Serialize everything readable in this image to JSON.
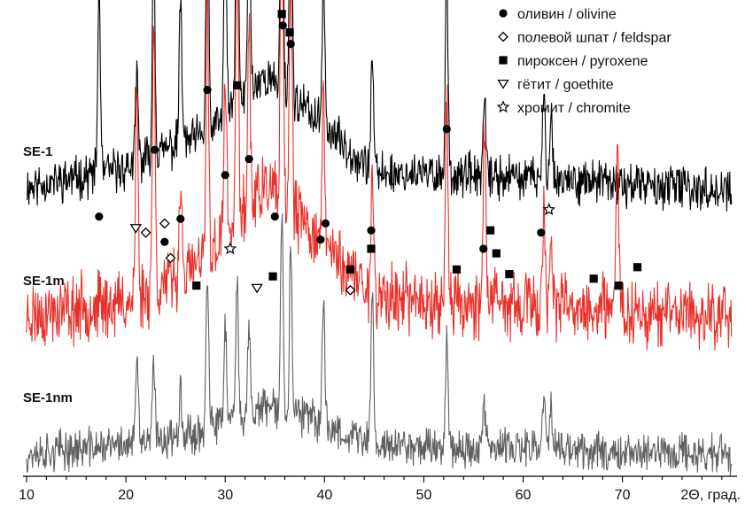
{
  "chart_data": {
    "type": "line",
    "x_label": "2Θ, град.",
    "xlim": [
      10,
      81
    ],
    "x_ticks": [
      10,
      20,
      30,
      40,
      50,
      60,
      70
    ],
    "x_minor_step": 2,
    "y_axis_shown": false,
    "series": [
      {
        "name": "SE-1",
        "color": "#000000",
        "offset": 0.6,
        "noise": 0.07,
        "seed": 11,
        "baseline": [
          [
            10,
            0.01
          ],
          [
            20,
            0.05
          ],
          [
            25,
            0.1
          ],
          [
            28,
            0.12
          ],
          [
            34,
            0.25
          ],
          [
            38,
            0.18
          ],
          [
            45,
            0.04
          ],
          [
            60,
            0.03
          ],
          [
            81,
            0.0
          ]
        ]
      },
      {
        "name": "SE-1m",
        "color": "#e8312a",
        "offset": 0.33,
        "noise": 0.11,
        "seed": 23,
        "baseline": [
          [
            10,
            0.0
          ],
          [
            20,
            0.03
          ],
          [
            26,
            0.09
          ],
          [
            28,
            0.12
          ],
          [
            34,
            0.28
          ],
          [
            38,
            0.2
          ],
          [
            45,
            0.04
          ],
          [
            60,
            0.02
          ],
          [
            81,
            0.0
          ]
        ]
      },
      {
        "name": "SE-1nm",
        "color": "#606060",
        "offset": 0.03,
        "noise": 0.065,
        "seed": 37,
        "baseline": [
          [
            10,
            0.0
          ],
          [
            20,
            0.02
          ],
          [
            26,
            0.04
          ],
          [
            28,
            0.05
          ],
          [
            34,
            0.1
          ],
          [
            38,
            0.08
          ],
          [
            45,
            0.02
          ],
          [
            60,
            0.01
          ],
          [
            81,
            0.0
          ]
        ]
      }
    ],
    "peaks": [
      {
        "x": 17.3,
        "h": [
          0.4,
          0.0,
          0.0
        ]
      },
      {
        "x": 21.1,
        "h": [
          0.2,
          0.45,
          0.18
        ]
      },
      {
        "x": 22.8,
        "h": [
          0.48,
          0.6,
          0.16
        ]
      },
      {
        "x": 25.5,
        "h": [
          0.32,
          0.22,
          0.12
        ]
      },
      {
        "x": 28.2,
        "h": [
          0.62,
          0.57,
          0.34
        ]
      },
      {
        "x": 30.0,
        "h": [
          0.44,
          0.36,
          0.22
        ]
      },
      {
        "x": 31.2,
        "h": [
          0.62,
          0.62,
          0.28
        ]
      },
      {
        "x": 32.4,
        "h": [
          0.46,
          0.4,
          0.2
        ]
      },
      {
        "x": 35.7,
        "h": [
          0.74,
          0.72,
          0.42
        ]
      },
      {
        "x": 36.6,
        "h": [
          0.6,
          0.55,
          0.36
        ]
      },
      {
        "x": 39.9,
        "h": [
          0.34,
          0.32,
          0.28
        ]
      },
      {
        "x": 44.8,
        "h": [
          0.26,
          0.28,
          0.34
        ]
      },
      {
        "x": 52.3,
        "h": [
          0.46,
          0.44,
          0.26
        ]
      },
      {
        "x": 56.1,
        "h": [
          0.16,
          0.42,
          0.1
        ]
      },
      {
        "x": 62.1,
        "h": [
          0.18,
          0.22,
          0.14
        ]
      },
      {
        "x": 62.8,
        "h": [
          0.16,
          0.18,
          0.1
        ]
      },
      {
        "x": 69.5,
        "h": [
          0.0,
          0.38,
          0.0
        ]
      }
    ],
    "markers": [
      {
        "x": 17.3,
        "y": 0.545,
        "sym": "circle"
      },
      {
        "x": 21.0,
        "y": 0.52,
        "sym": "triangle"
      },
      {
        "x": 22.0,
        "y": 0.51,
        "sym": "diamond"
      },
      {
        "x": 22.9,
        "y": 0.69,
        "sym": "circle"
      },
      {
        "x": 23.9,
        "y": 0.53,
        "sym": "diamond"
      },
      {
        "x": 23.9,
        "y": 0.49,
        "sym": "circle"
      },
      {
        "x": 24.5,
        "y": 0.455,
        "sym": "diamond"
      },
      {
        "x": 25.5,
        "y": 0.54,
        "sym": "circle"
      },
      {
        "x": 27.1,
        "y": 0.395,
        "sym": "square"
      },
      {
        "x": 28.2,
        "y": 0.82,
        "sym": "circle"
      },
      {
        "x": 30.0,
        "y": 0.635,
        "sym": "circle"
      },
      {
        "x": 30.5,
        "y": 0.475,
        "sym": "star"
      },
      {
        "x": 31.2,
        "y": 0.83,
        "sym": "square"
      },
      {
        "x": 32.4,
        "y": 0.67,
        "sym": "circle"
      },
      {
        "x": 33.2,
        "y": 0.39,
        "sym": "triangle"
      },
      {
        "x": 34.8,
        "y": 0.415,
        "sym": "square"
      },
      {
        "x": 35.0,
        "y": 0.545,
        "sym": "circle"
      },
      {
        "x": 35.7,
        "y": 0.985,
        "sym": "square"
      },
      {
        "x": 35.8,
        "y": 0.96,
        "sym": "circle"
      },
      {
        "x": 36.5,
        "y": 0.945,
        "sym": "square"
      },
      {
        "x": 36.6,
        "y": 0.92,
        "sym": "circle"
      },
      {
        "x": 39.6,
        "y": 0.495,
        "sym": "circle"
      },
      {
        "x": 40.1,
        "y": 0.53,
        "sym": "circle"
      },
      {
        "x": 42.6,
        "y": 0.43,
        "sym": "square"
      },
      {
        "x": 42.6,
        "y": 0.385,
        "sym": "diamond"
      },
      {
        "x": 44.7,
        "y": 0.515,
        "sym": "circle"
      },
      {
        "x": 44.7,
        "y": 0.475,
        "sym": "square"
      },
      {
        "x": 52.3,
        "y": 0.735,
        "sym": "circle"
      },
      {
        "x": 53.3,
        "y": 0.43,
        "sym": "square"
      },
      {
        "x": 56.0,
        "y": 0.475,
        "sym": "circle"
      },
      {
        "x": 56.7,
        "y": 0.515,
        "sym": "square"
      },
      {
        "x": 57.3,
        "y": 0.465,
        "sym": "square"
      },
      {
        "x": 58.6,
        "y": 0.42,
        "sym": "square"
      },
      {
        "x": 61.8,
        "y": 0.51,
        "sym": "circle"
      },
      {
        "x": 62.6,
        "y": 0.56,
        "sym": "star"
      },
      {
        "x": 67.1,
        "y": 0.41,
        "sym": "square"
      },
      {
        "x": 69.6,
        "y": 0.395,
        "sym": "square"
      },
      {
        "x": 71.5,
        "y": 0.435,
        "sym": "square"
      }
    ],
    "legend": {
      "placement": "top-right",
      "entries": [
        {
          "sym": "circle",
          "label": "оливин / olivine"
        },
        {
          "sym": "diamond",
          "label": "полевой шпат / feldspar"
        },
        {
          "sym": "square",
          "label": "пироксен / pyroxene"
        },
        {
          "sym": "triangle",
          "label": "гётит / goethite"
        },
        {
          "sym": "star",
          "label": "хромит / chromite"
        }
      ]
    }
  }
}
